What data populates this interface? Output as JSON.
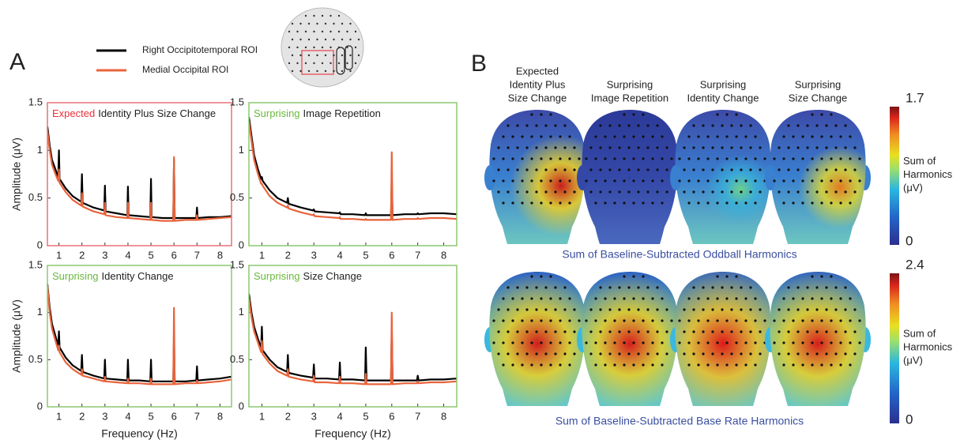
{
  "panel_labels": [
    "A",
    "B"
  ],
  "legend": [
    {
      "name": "Right Occipitotemporal ROI",
      "color": "#000000"
    },
    {
      "name": "Medial Occipital ROI",
      "color": "#e8643c"
    }
  ],
  "chart_data": [
    {
      "type": "line",
      "condition": "Expected",
      "condition_color": "#e8303a",
      "title": "Identity Plus Size Change",
      "frame_color": "#e8707a",
      "ylabel": "Amplitude (μV)",
      "x": [
        0.5,
        0.6,
        0.7,
        0.85,
        0.97,
        1,
        1.03,
        1.3,
        1.6,
        1.97,
        2,
        2.03,
        2.5,
        2.97,
        3,
        3.03,
        3.5,
        3.97,
        4,
        4.03,
        4.5,
        4.97,
        5,
        5.03,
        5.5,
        5.97,
        6,
        6.03,
        6.5,
        6.97,
        7,
        7.03,
        7.5,
        8,
        8.5
      ],
      "series": [
        {
          "color": "#000000",
          "values": [
            1.25,
            1.05,
            0.9,
            0.8,
            0.72,
            1.0,
            0.7,
            0.6,
            0.52,
            0.46,
            0.75,
            0.45,
            0.4,
            0.37,
            0.63,
            0.36,
            0.34,
            0.32,
            0.62,
            0.32,
            0.31,
            0.3,
            0.7,
            0.3,
            0.29,
            0.29,
            0.9,
            0.29,
            0.29,
            0.29,
            0.4,
            0.29,
            0.3,
            0.3,
            0.31
          ]
        },
        {
          "color": "#e8643c",
          "values": [
            1.2,
            1.0,
            0.85,
            0.75,
            0.68,
            0.8,
            0.66,
            0.56,
            0.48,
            0.42,
            0.55,
            0.41,
            0.36,
            0.33,
            0.45,
            0.32,
            0.3,
            0.29,
            0.45,
            0.29,
            0.28,
            0.27,
            0.45,
            0.27,
            0.26,
            0.26,
            0.93,
            0.26,
            0.27,
            0.27,
            0.32,
            0.27,
            0.28,
            0.29,
            0.3
          ]
        }
      ],
      "xlim": [
        0.5,
        8.5
      ],
      "ylim": [
        0,
        1.5
      ],
      "xticks": [
        1,
        2,
        3,
        4,
        5,
        6,
        7,
        8
      ],
      "yticks": [
        0,
        0.5,
        1,
        1.5
      ]
    },
    {
      "type": "line",
      "condition": "Surprising",
      "condition_color": "#6ab83a",
      "title": "Image Repetition",
      "frame_color": "#8cc870",
      "x": [
        0.5,
        0.6,
        0.7,
        0.85,
        0.97,
        1,
        1.03,
        1.3,
        1.6,
        1.97,
        2,
        2.03,
        2.5,
        2.97,
        3,
        3.03,
        3.5,
        3.97,
        4,
        4.03,
        4.5,
        4.97,
        5,
        5.03,
        5.5,
        5.97,
        6,
        6.03,
        6.5,
        6.97,
        7,
        7.03,
        7.5,
        8,
        8.5
      ],
      "series": [
        {
          "color": "#000000",
          "values": [
            1.35,
            1.15,
            0.95,
            0.8,
            0.7,
            0.72,
            0.68,
            0.58,
            0.5,
            0.45,
            0.5,
            0.44,
            0.4,
            0.37,
            0.38,
            0.36,
            0.35,
            0.34,
            0.35,
            0.33,
            0.33,
            0.32,
            0.34,
            0.32,
            0.32,
            0.32,
            0.7,
            0.32,
            0.33,
            0.33,
            0.34,
            0.33,
            0.34,
            0.34,
            0.33
          ]
        },
        {
          "color": "#e8643c",
          "values": [
            1.3,
            1.1,
            0.9,
            0.75,
            0.65,
            0.65,
            0.63,
            0.52,
            0.45,
            0.4,
            0.42,
            0.39,
            0.35,
            0.32,
            0.33,
            0.31,
            0.3,
            0.29,
            0.3,
            0.28,
            0.28,
            0.27,
            0.28,
            0.27,
            0.27,
            0.27,
            0.98,
            0.27,
            0.28,
            0.28,
            0.29,
            0.28,
            0.29,
            0.29,
            0.28
          ]
        }
      ],
      "xlim": [
        0.5,
        8.5
      ],
      "ylim": [
        0,
        1.5
      ],
      "xticks": [
        1,
        2,
        3,
        4,
        5,
        6,
        7,
        8
      ],
      "yticks": [
        0,
        0.5,
        1,
        1.5
      ]
    },
    {
      "type": "line",
      "condition": "Surprising",
      "condition_color": "#6ab83a",
      "title": "Identity Change",
      "frame_color": "#8cc870",
      "ylabel": "Amplitude (μV)",
      "xlabel": "Frequency (Hz)",
      "x": [
        0.5,
        0.6,
        0.7,
        0.85,
        0.97,
        1,
        1.03,
        1.3,
        1.6,
        1.97,
        2,
        2.03,
        2.5,
        2.97,
        3,
        3.03,
        3.5,
        3.97,
        4,
        4.03,
        4.5,
        4.97,
        5,
        5.03,
        5.5,
        5.97,
        6,
        6.03,
        6.5,
        6.97,
        7,
        7.03,
        7.5,
        8,
        8.5
      ],
      "series": [
        {
          "color": "#000000",
          "values": [
            1.3,
            1.05,
            0.88,
            0.75,
            0.65,
            0.8,
            0.63,
            0.52,
            0.44,
            0.38,
            0.55,
            0.37,
            0.33,
            0.3,
            0.5,
            0.3,
            0.29,
            0.28,
            0.5,
            0.28,
            0.28,
            0.27,
            0.5,
            0.27,
            0.27,
            0.27,
            0.75,
            0.27,
            0.27,
            0.28,
            0.43,
            0.28,
            0.29,
            0.3,
            0.32
          ]
        },
        {
          "color": "#e8643c",
          "values": [
            1.28,
            1.0,
            0.83,
            0.7,
            0.6,
            0.65,
            0.58,
            0.47,
            0.4,
            0.34,
            0.4,
            0.33,
            0.3,
            0.27,
            0.32,
            0.27,
            0.26,
            0.25,
            0.3,
            0.25,
            0.25,
            0.24,
            0.3,
            0.24,
            0.24,
            0.24,
            1.05,
            0.24,
            0.25,
            0.25,
            0.28,
            0.25,
            0.26,
            0.27,
            0.29
          ]
        }
      ],
      "xlim": [
        0.5,
        8.5
      ],
      "ylim": [
        0,
        1.5
      ],
      "xticks": [
        1,
        2,
        3,
        4,
        5,
        6,
        7,
        8
      ],
      "yticks": [
        0,
        0.5,
        1,
        1.5
      ]
    },
    {
      "type": "line",
      "condition": "Surprising",
      "condition_color": "#6ab83a",
      "title": "Size Change",
      "frame_color": "#8cc870",
      "xlabel": "Frequency (Hz)",
      "x": [
        0.5,
        0.6,
        0.7,
        0.85,
        0.97,
        1,
        1.03,
        1.3,
        1.6,
        1.97,
        2,
        2.03,
        2.5,
        2.97,
        3,
        3.03,
        3.5,
        3.97,
        4,
        4.03,
        4.5,
        4.97,
        5,
        5.03,
        5.5,
        5.97,
        6,
        6.03,
        6.5,
        6.97,
        7,
        7.03,
        7.5,
        8,
        8.5
      ],
      "series": [
        {
          "color": "#000000",
          "values": [
            1.2,
            1.0,
            0.85,
            0.72,
            0.62,
            0.85,
            0.6,
            0.5,
            0.42,
            0.37,
            0.55,
            0.36,
            0.33,
            0.31,
            0.45,
            0.3,
            0.3,
            0.29,
            0.47,
            0.29,
            0.29,
            0.28,
            0.63,
            0.28,
            0.28,
            0.28,
            0.83,
            0.28,
            0.28,
            0.28,
            0.33,
            0.28,
            0.29,
            0.29,
            0.3
          ]
        },
        {
          "color": "#e8643c",
          "values": [
            1.15,
            0.95,
            0.8,
            0.68,
            0.58,
            0.7,
            0.56,
            0.46,
            0.38,
            0.33,
            0.4,
            0.32,
            0.29,
            0.27,
            0.33,
            0.26,
            0.26,
            0.25,
            0.32,
            0.25,
            0.25,
            0.24,
            0.35,
            0.24,
            0.24,
            0.24,
            1.0,
            0.24,
            0.25,
            0.25,
            0.27,
            0.25,
            0.26,
            0.26,
            0.27
          ]
        }
      ],
      "xlim": [
        0.5,
        8.5
      ],
      "ylim": [
        0,
        1.5
      ],
      "xticks": [
        1,
        2,
        3,
        4,
        5,
        6,
        7,
        8
      ],
      "yticks": [
        0,
        0.5,
        1,
        1.5
      ]
    }
  ],
  "topography": {
    "columns": [
      {
        "condition": "Expected",
        "condition_color": "#e8303a",
        "lines": [
          "Identity Plus",
          "Size Change"
        ]
      },
      {
        "condition": "Surprising",
        "condition_color": "#6ab83a",
        "lines": [
          "Image Repetition"
        ]
      },
      {
        "condition": "Surprising",
        "condition_color": "#6ab83a",
        "lines": [
          "Identity Change"
        ]
      },
      {
        "condition": "Surprising",
        "condition_color": "#6ab83a",
        "lines": [
          "Size Change"
        ]
      }
    ],
    "rows": [
      {
        "caption": "Sum of Baseline-Subtracted  Oddball Harmonics",
        "colorbar": {
          "label": [
            "Sum of",
            "Harmonics",
            "(μV)"
          ],
          "lim": [
            0,
            1.7
          ],
          "ticks": [
            0,
            1.7
          ]
        }
      },
      {
        "caption": "Sum of Baseline-Subtracted  Base Rate Harmonics",
        "colorbar": {
          "label": [
            "Sum of",
            "Harmonics",
            "(μV)"
          ],
          "lim": [
            0,
            2.4
          ],
          "ticks": [
            0,
            2.4
          ]
        }
      }
    ]
  }
}
